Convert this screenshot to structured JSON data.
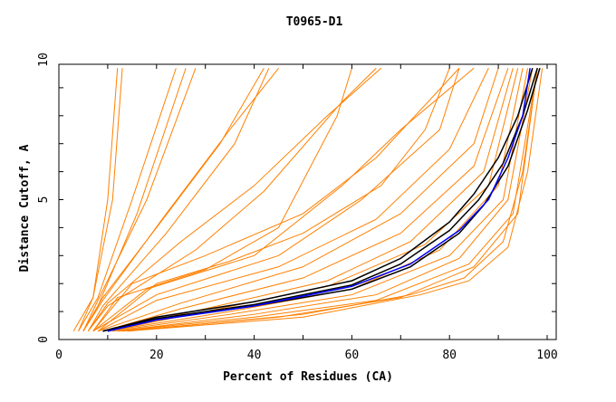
{
  "chart_data": {
    "type": "line",
    "title": "T0965-D1",
    "xlabel": "Percent of Residues (CA)",
    "ylabel": "Distance Cutoff, A",
    "xlim": [
      0,
      100
    ],
    "ylim": [
      0,
      10
    ],
    "xticks": [
      "0",
      "20",
      "40",
      "60",
      "80",
      "100"
    ],
    "yticks": [
      "0",
      "5",
      "10"
    ],
    "grid": false,
    "legend": "none",
    "colors": {
      "models": "#ff8000",
      "top": "#000000",
      "best": "#0000ff"
    },
    "series": [
      {
        "group": "models",
        "points": [
          [
            3,
            0.3
          ],
          [
            7,
            1.5
          ],
          [
            10,
            5
          ],
          [
            12,
            9.7
          ]
        ]
      },
      {
        "group": "models",
        "points": [
          [
            4,
            0.3
          ],
          [
            7,
            1.5
          ],
          [
            11,
            5
          ],
          [
            13,
            9.7
          ]
        ]
      },
      {
        "group": "models",
        "points": [
          [
            4,
            0.3
          ],
          [
            8,
            1.5
          ],
          [
            15,
            5
          ],
          [
            24,
            9.7
          ]
        ]
      },
      {
        "group": "models",
        "points": [
          [
            5,
            0.3
          ],
          [
            8,
            1.2
          ],
          [
            16,
            4.5
          ],
          [
            26,
            9.7
          ]
        ]
      },
      {
        "group": "models",
        "points": [
          [
            5,
            0.3
          ],
          [
            8,
            1.4
          ],
          [
            18,
            5
          ],
          [
            28,
            9.7
          ]
        ]
      },
      {
        "group": "models",
        "points": [
          [
            5,
            0.3
          ],
          [
            9,
            1.5
          ],
          [
            20,
            4
          ],
          [
            33,
            7
          ],
          [
            42,
            9.7
          ]
        ]
      },
      {
        "group": "models",
        "points": [
          [
            5,
            0.3
          ],
          [
            9,
            1.4
          ],
          [
            22,
            4.5
          ],
          [
            35,
            7.5
          ],
          [
            45,
            9.7
          ]
        ]
      },
      {
        "group": "models",
        "points": [
          [
            6,
            0.3
          ],
          [
            9,
            1.2
          ],
          [
            22,
            3.8
          ],
          [
            36,
            7
          ],
          [
            43,
            9.7
          ]
        ]
      },
      {
        "group": "models",
        "points": [
          [
            6,
            0.3
          ],
          [
            10,
            1.3
          ],
          [
            25,
            3.5
          ],
          [
            40,
            5.5
          ],
          [
            55,
            8
          ],
          [
            66,
            9.7
          ]
        ]
      },
      {
        "group": "models",
        "points": [
          [
            6,
            0.3
          ],
          [
            10,
            1.2
          ],
          [
            28,
            3.2
          ],
          [
            42,
            5.3
          ],
          [
            58,
            8.5
          ],
          [
            65,
            9.7
          ]
        ]
      },
      {
        "group": "models",
        "points": [
          [
            7,
            0.3
          ],
          [
            12,
            1.5
          ],
          [
            30,
            2.5
          ],
          [
            45,
            4
          ],
          [
            57,
            8
          ],
          [
            60,
            9.7
          ]
        ]
      },
      {
        "group": "models",
        "points": [
          [
            7,
            0.3
          ],
          [
            18,
            1.8
          ],
          [
            40,
            3
          ],
          [
            58,
            5.5
          ],
          [
            70,
            7.5
          ],
          [
            85,
            9.7
          ]
        ]
      },
      {
        "group": "models",
        "points": [
          [
            7,
            0.3
          ],
          [
            20,
            1.6
          ],
          [
            45,
            3
          ],
          [
            62,
            5
          ],
          [
            78,
            7.5
          ],
          [
            82,
            9.7
          ]
        ]
      },
      {
        "group": "models",
        "points": [
          [
            8,
            0.3
          ],
          [
            20,
            1.4
          ],
          [
            45,
            2.6
          ],
          [
            65,
            4.3
          ],
          [
            80,
            6.8
          ],
          [
            88,
            9.7
          ]
        ]
      },
      {
        "group": "models",
        "points": [
          [
            8,
            0.3
          ],
          [
            25,
            1.3
          ],
          [
            50,
            2.6
          ],
          [
            70,
            4.5
          ],
          [
            85,
            7
          ],
          [
            90,
            9.7
          ]
        ]
      },
      {
        "group": "models",
        "points": [
          [
            9,
            0.3
          ],
          [
            25,
            1.1
          ],
          [
            50,
            2.2
          ],
          [
            70,
            3.8
          ],
          [
            85,
            6.2
          ],
          [
            92,
            9.7
          ]
        ]
      },
      {
        "group": "models",
        "points": [
          [
            9,
            0.3
          ],
          [
            30,
            1.1
          ],
          [
            55,
            2.1
          ],
          [
            72,
            3.5
          ],
          [
            87,
            6
          ],
          [
            93,
            9.7
          ]
        ]
      },
      {
        "group": "models",
        "points": [
          [
            10,
            0.3
          ],
          [
            30,
            1
          ],
          [
            55,
            1.9
          ],
          [
            75,
            3.4
          ],
          [
            88,
            5.5
          ],
          [
            94,
            9.7
          ]
        ]
      },
      {
        "group": "models",
        "points": [
          [
            10,
            0.3
          ],
          [
            35,
            1
          ],
          [
            60,
            1.8
          ],
          [
            78,
            3.2
          ],
          [
            90,
            5.5
          ],
          [
            95,
            9.7
          ]
        ]
      },
      {
        "group": "models",
        "points": [
          [
            11,
            0.3
          ],
          [
            35,
            0.9
          ],
          [
            60,
            1.6
          ],
          [
            80,
            3
          ],
          [
            91,
            5
          ],
          [
            96,
            9.7
          ]
        ]
      },
      {
        "group": "models",
        "points": [
          [
            12,
            0.3
          ],
          [
            40,
            0.9
          ],
          [
            65,
            1.6
          ],
          [
            82,
            2.9
          ],
          [
            92,
            5
          ],
          [
            97,
            9.7
          ]
        ]
      },
      {
        "group": "models",
        "points": [
          [
            12,
            0.3
          ],
          [
            40,
            0.8
          ],
          [
            65,
            1.4
          ],
          [
            84,
            2.7
          ],
          [
            93,
            4.5
          ],
          [
            98,
            9.7
          ]
        ]
      },
      {
        "group": "models",
        "points": [
          [
            13,
            0.3
          ],
          [
            45,
            0.8
          ],
          [
            70,
            1.5
          ],
          [
            85,
            2.6
          ],
          [
            94,
            4.5
          ],
          [
            98,
            9.7
          ]
        ]
      },
      {
        "group": "models",
        "points": [
          [
            14,
            0.3
          ],
          [
            50,
            0.9
          ],
          [
            72,
            1.6
          ],
          [
            83,
            2.2
          ],
          [
            91,
            3.5
          ],
          [
            95,
            6
          ],
          [
            98,
            9.7
          ]
        ]
      },
      {
        "group": "models",
        "points": [
          [
            14,
            0.3
          ],
          [
            50,
            0.8
          ],
          [
            74,
            1.6
          ],
          [
            84,
            2.1
          ],
          [
            92,
            3.3
          ],
          [
            96,
            6
          ],
          [
            99,
            9.7
          ]
        ]
      },
      {
        "group": "models",
        "points": [
          [
            8,
            0.3
          ],
          [
            20,
            2
          ],
          [
            35,
            2.8
          ],
          [
            50,
            3.8
          ],
          [
            66,
            5.5
          ],
          [
            75,
            7.5
          ],
          [
            80,
            9.7
          ]
        ]
      },
      {
        "group": "models",
        "points": [
          [
            7,
            0.3
          ],
          [
            15,
            2
          ],
          [
            30,
            3
          ],
          [
            50,
            4.5
          ],
          [
            65,
            6.5
          ],
          [
            82,
            9.7
          ]
        ]
      },
      {
        "group": "top",
        "points": [
          [
            9,
            0.3
          ],
          [
            20,
            0.8
          ],
          [
            40,
            1.35
          ],
          [
            60,
            2.1
          ],
          [
            70,
            2.9
          ],
          [
            80,
            4.2
          ],
          [
            85,
            5.2
          ],
          [
            90,
            6.5
          ],
          [
            94,
            8
          ],
          [
            97,
            9.7
          ]
        ]
      },
      {
        "group": "top",
        "points": [
          [
            9,
            0.3
          ],
          [
            20,
            0.75
          ],
          [
            40,
            1.25
          ],
          [
            60,
            1.95
          ],
          [
            70,
            2.7
          ],
          [
            80,
            3.9
          ],
          [
            86,
            5
          ],
          [
            91,
            6.3
          ],
          [
            95,
            8
          ],
          [
            98,
            9.7
          ]
        ]
      },
      {
        "group": "top",
        "points": [
          [
            10,
            0.3
          ],
          [
            20,
            0.7
          ],
          [
            40,
            1.2
          ],
          [
            60,
            1.8
          ],
          [
            72,
            2.6
          ],
          [
            82,
            3.8
          ],
          [
            87,
            4.8
          ],
          [
            92,
            6.2
          ],
          [
            96,
            8.2
          ],
          [
            98.5,
            9.7
          ]
        ]
      },
      {
        "group": "best",
        "points": [
          [
            10,
            0.3
          ],
          [
            20,
            0.7
          ],
          [
            40,
            1.2
          ],
          [
            60,
            1.9
          ],
          [
            72,
            2.7
          ],
          [
            82,
            3.9
          ],
          [
            88,
            5
          ],
          [
            92,
            6.5
          ],
          [
            95,
            8
          ],
          [
            96.5,
            9.7
          ]
        ]
      }
    ]
  }
}
